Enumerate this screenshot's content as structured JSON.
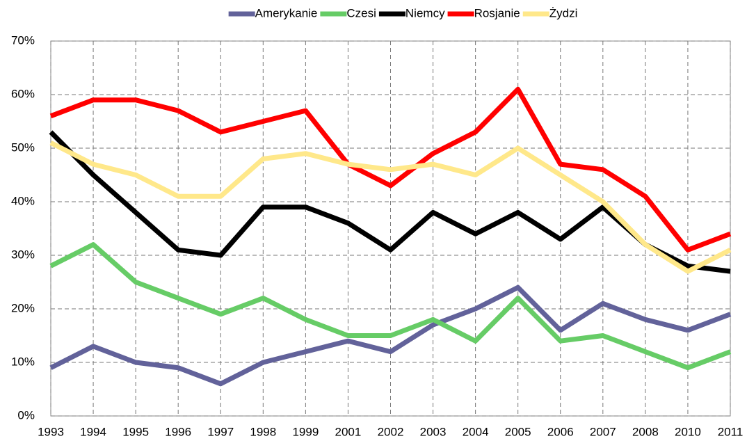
{
  "chart_data": {
    "type": "line",
    "categories": [
      "1993",
      "1994",
      "1995",
      "1996",
      "1997",
      "1998",
      "1999",
      "2001",
      "2002",
      "2003",
      "2004",
      "2005",
      "2006",
      "2007",
      "2008",
      "2010",
      "2011"
    ],
    "series": [
      {
        "name": "Amerykanie",
        "color": "#62629a",
        "values": [
          9,
          13,
          10,
          9,
          6,
          10,
          12,
          14,
          12,
          17,
          20,
          24,
          16,
          21,
          18,
          16,
          19
        ]
      },
      {
        "name": "Czesi",
        "color": "#66cc66",
        "values": [
          28,
          32,
          25,
          22,
          19,
          22,
          18,
          15,
          15,
          18,
          14,
          22,
          14,
          15,
          12,
          9,
          12
        ]
      },
      {
        "name": "Niemcy",
        "color": "#000000",
        "values": [
          53,
          45,
          38,
          31,
          30,
          39,
          39,
          36,
          31,
          38,
          34,
          38,
          33,
          39,
          32,
          28,
          27
        ]
      },
      {
        "name": "Rosjanie",
        "color": "#ff0000",
        "values": [
          56,
          59,
          59,
          57,
          53,
          55,
          57,
          47,
          43,
          49,
          53,
          61,
          47,
          46,
          41,
          31,
          34
        ]
      },
      {
        "name": "Żydzi",
        "color": "#ffe88a",
        "values": [
          51,
          47,
          45,
          41,
          41,
          48,
          49,
          47,
          46,
          47,
          45,
          50,
          45,
          40,
          32,
          27,
          31
        ]
      }
    ],
    "ylim": [
      0,
      70
    ],
    "yticks": [
      {
        "value": 0,
        "label": "0%"
      },
      {
        "value": 10,
        "label": "10%"
      },
      {
        "value": 20,
        "label": "20%"
      },
      {
        "value": 30,
        "label": "30%"
      },
      {
        "value": 40,
        "label": "40%"
      },
      {
        "value": 50,
        "label": "50%"
      },
      {
        "value": 60,
        "label": "60%"
      },
      {
        "value": 70,
        "label": "70%"
      }
    ],
    "grid": true,
    "legend": "top"
  }
}
